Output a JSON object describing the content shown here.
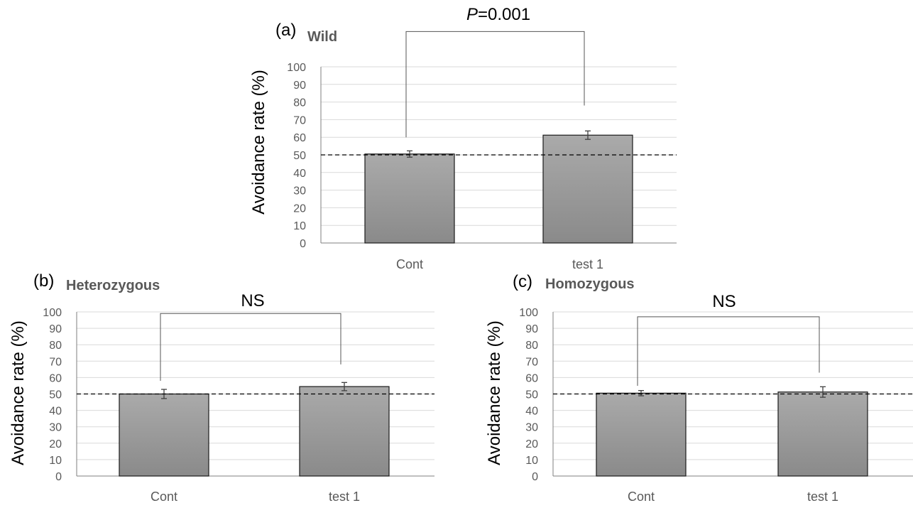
{
  "chart_data": [
    {
      "type": "bar",
      "panel_label": "(a)",
      "title": "Wild",
      "ylabel": "Avoidance rate (%)",
      "xlabel": "",
      "categories": [
        "Cont",
        "test 1"
      ],
      "values": [
        50.5,
        61.2
      ],
      "error": [
        1.8,
        2.4
      ],
      "ylim": [
        0,
        100
      ],
      "yticks": [
        0,
        10,
        20,
        30,
        40,
        50,
        60,
        70,
        80,
        90,
        100
      ],
      "reference_line": 50,
      "significance": {
        "label": "P=0.001",
        "label_italic_part": "P",
        "label_rest": "=0.001",
        "bracket_y": 120,
        "left_end": 60,
        "right_end": 78
      },
      "grid": true
    },
    {
      "type": "bar",
      "panel_label": "(b)",
      "title": "Heterozygous",
      "ylabel": "Avoidance rate (%)",
      "xlabel": "",
      "categories": [
        "Cont",
        "test 1"
      ],
      "values": [
        50.0,
        54.5
      ],
      "error": [
        2.8,
        2.5
      ],
      "ylim": [
        0,
        100
      ],
      "yticks": [
        0,
        10,
        20,
        30,
        40,
        50,
        60,
        70,
        80,
        90,
        100
      ],
      "reference_line": 50,
      "significance": {
        "label": "NS",
        "label_italic_part": "",
        "label_rest": "NS",
        "bracket_y": 99,
        "left_end": 58,
        "right_end": 68
      },
      "grid": true
    },
    {
      "type": "bar",
      "panel_label": "(c)",
      "title": "Homozygous",
      "ylabel": "Avoidance rate (%)",
      "xlabel": "",
      "categories": [
        "Cont",
        "test 1"
      ],
      "values": [
        50.5,
        51.2
      ],
      "error": [
        1.6,
        3.2
      ],
      "ylim": [
        0,
        100
      ],
      "yticks": [
        0,
        10,
        20,
        30,
        40,
        50,
        60,
        70,
        80,
        90,
        100
      ],
      "reference_line": 50,
      "significance": {
        "label": "NS",
        "label_italic_part": "",
        "label_rest": "NS",
        "bracket_y": 97,
        "left_end": 55,
        "right_end": 63
      },
      "grid": true
    }
  ]
}
